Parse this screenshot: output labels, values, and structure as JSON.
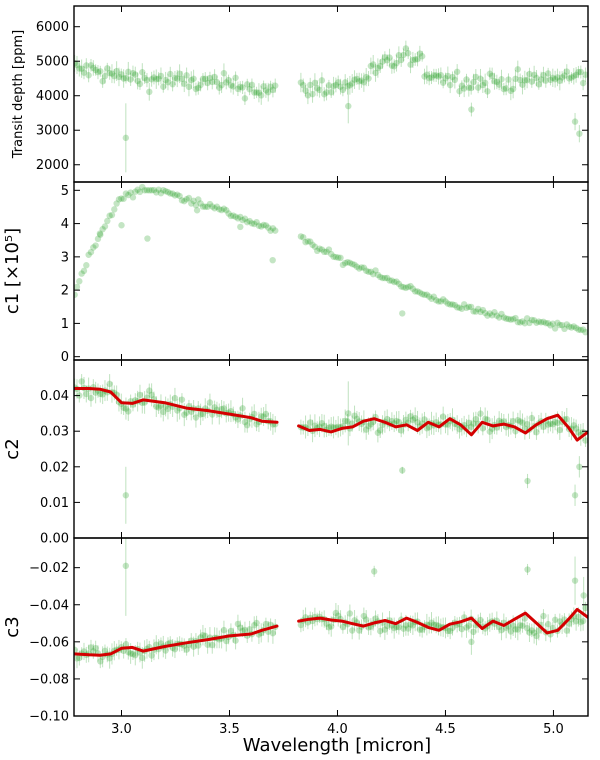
{
  "figure": {
    "xlabel": "Wavelength [micron]",
    "xlim": [
      2.78,
      5.16
    ],
    "xticks": [
      3.0,
      3.5,
      4.0,
      4.5,
      5.0
    ],
    "xticklabels": [
      "3.0",
      "3.5",
      "4.0",
      "4.5",
      "5.0"
    ],
    "gap": [
      3.72,
      3.82
    ],
    "series_color": "#2ca02c",
    "model_color": "#d40000"
  },
  "chart_data": [
    {
      "type": "scatter",
      "panel": "transit-depth",
      "ylabel": "Transit depth [ppm]",
      "ylim": [
        1500,
        6600
      ],
      "yticks": [
        2000,
        3000,
        4000,
        5000,
        6000
      ],
      "yticklabels": [
        "2000",
        "3000",
        "4000",
        "5000",
        "6000"
      ],
      "trend": {
        "x": [
          2.78,
          3.0,
          3.3,
          3.5,
          3.72,
          3.82,
          4.05,
          4.2,
          4.32,
          4.45,
          4.6,
          4.8,
          5.0,
          5.16
        ],
        "y": [
          4800,
          4550,
          4400,
          4320,
          4120,
          4200,
          4300,
          4800,
          5150,
          4600,
          4400,
          4400,
          4500,
          4550
        ]
      },
      "scatter": 200,
      "errorbar": 220,
      "outliers": [
        {
          "x": 3.02,
          "y": 2780,
          "err": 1000
        },
        {
          "x": 4.05,
          "y": 3700,
          "err": 500
        },
        {
          "x": 5.1,
          "y": 3250,
          "err": 250
        },
        {
          "x": 5.12,
          "y": 2900,
          "err": 250
        },
        {
          "x": 4.62,
          "y": 3600,
          "err": 200
        }
      ],
      "model": null
    },
    {
      "type": "scatter",
      "panel": "c1",
      "ylabel": "c1 [×10⁵]",
      "ylim": [
        -0.1,
        5.25
      ],
      "yticks": [
        0,
        1,
        2,
        3,
        4,
        5
      ],
      "yticklabels": [
        "0",
        "1",
        "2",
        "3",
        "4",
        "5"
      ],
      "trend": {
        "x": [
          2.78,
          2.85,
          2.92,
          3.0,
          3.1,
          3.2,
          3.3,
          3.4,
          3.5,
          3.6,
          3.72,
          3.82,
          3.9,
          4.0,
          4.2,
          4.4,
          4.6,
          4.8,
          5.0,
          5.16
        ],
        "y": [
          1.9,
          3.0,
          3.9,
          4.8,
          5.05,
          4.95,
          4.75,
          4.55,
          4.3,
          4.05,
          3.75,
          3.6,
          3.3,
          2.95,
          2.45,
          1.85,
          1.45,
          1.15,
          0.95,
          0.8
        ]
      },
      "scatter": 0.07,
      "errorbar": 0,
      "outliers": [
        {
          "x": 3.12,
          "y": 3.55,
          "err": 0
        },
        {
          "x": 2.9,
          "y": 3.7,
          "err": 0
        },
        {
          "x": 3.0,
          "y": 3.95,
          "err": 0
        },
        {
          "x": 3.35,
          "y": 4.4,
          "err": 0
        },
        {
          "x": 4.3,
          "y": 1.3,
          "err": 0
        },
        {
          "x": 3.7,
          "y": 2.9,
          "err": 0
        },
        {
          "x": 3.55,
          "y": 3.9,
          "err": 0
        }
      ],
      "model": null
    },
    {
      "type": "scatter",
      "panel": "c2",
      "ylabel": "c2",
      "ylim": [
        0.0,
        0.05
      ],
      "yticks": [
        0.0,
        0.01,
        0.02,
        0.03,
        0.04
      ],
      "yticklabels": [
        "0.00",
        "0.01",
        "0.02",
        "0.03",
        "0.04"
      ],
      "trend": {
        "x": [
          2.78,
          2.95,
          3.0,
          3.1,
          3.3,
          3.5,
          3.72,
          3.82,
          4.0,
          4.2,
          4.4,
          4.6,
          4.8,
          5.0,
          5.16
        ],
        "y": [
          0.042,
          0.041,
          0.038,
          0.039,
          0.036,
          0.035,
          0.032,
          0.031,
          0.031,
          0.032,
          0.032,
          0.032,
          0.031,
          0.033,
          0.029
        ]
      },
      "scatter": 0.0017,
      "errorbar": 0.0025,
      "outliers": [
        {
          "x": 3.02,
          "y": 0.012,
          "err": 0.008
        },
        {
          "x": 4.3,
          "y": 0.019,
          "err": 0.001
        },
        {
          "x": 4.88,
          "y": 0.016,
          "err": 0.002
        },
        {
          "x": 5.1,
          "y": 0.012,
          "err": 0.003
        },
        {
          "x": 4.05,
          "y": 0.035,
          "err": 0.009
        },
        {
          "x": 5.12,
          "y": 0.02,
          "err": 0.003
        }
      ],
      "model": {
        "x": [
          2.78,
          2.85,
          2.9,
          2.95,
          3.0,
          3.05,
          3.1,
          3.2,
          3.3,
          3.4,
          3.5,
          3.6,
          3.65,
          3.72,
          3.82,
          3.87,
          3.92,
          3.97,
          4.02,
          4.07,
          4.12,
          4.17,
          4.22,
          4.27,
          4.32,
          4.37,
          4.42,
          4.47,
          4.52,
          4.57,
          4.62,
          4.67,
          4.72,
          4.77,
          4.82,
          4.87,
          4.92,
          4.97,
          5.02,
          5.07,
          5.11,
          5.16
        ],
        "y": [
          0.042,
          0.042,
          0.0418,
          0.041,
          0.038,
          0.0378,
          0.0388,
          0.038,
          0.0365,
          0.0358,
          0.0348,
          0.0338,
          0.0328,
          0.0325,
          0.0315,
          0.0302,
          0.0305,
          0.0298,
          0.0308,
          0.0312,
          0.0328,
          0.0335,
          0.0325,
          0.0312,
          0.0318,
          0.0302,
          0.0325,
          0.0312,
          0.0335,
          0.0318,
          0.029,
          0.0325,
          0.0315,
          0.032,
          0.0312,
          0.0295,
          0.0318,
          0.0335,
          0.0345,
          0.031,
          0.0275,
          0.0298
        ]
      }
    },
    {
      "type": "scatter",
      "panel": "c3",
      "ylabel": "c3",
      "ylim": [
        -0.1,
        -0.004
      ],
      "yticks": [
        -0.1,
        -0.08,
        -0.06,
        -0.04,
        -0.02
      ],
      "yticklabels": [
        "−0.10",
        "−0.08",
        "−0.06",
        "−0.04",
        "−0.02"
      ],
      "trend": {
        "x": [
          2.78,
          2.95,
          3.0,
          3.1,
          3.3,
          3.5,
          3.72,
          3.82,
          4.0,
          4.2,
          4.4,
          4.6,
          4.8,
          5.0,
          5.16
        ],
        "y": [
          -0.067,
          -0.067,
          -0.063,
          -0.065,
          -0.061,
          -0.056,
          -0.052,
          -0.049,
          -0.049,
          -0.051,
          -0.052,
          -0.051,
          -0.05,
          -0.053,
          -0.046
        ]
      },
      "scatter": 0.003,
      "errorbar": 0.0045,
      "outliers": [
        {
          "x": 3.02,
          "y": -0.019,
          "err": 0.027
        },
        {
          "x": 4.17,
          "y": -0.022,
          "err": 0.003
        },
        {
          "x": 4.88,
          "y": -0.021,
          "err": 0.003
        },
        {
          "x": 5.1,
          "y": -0.027,
          "err": 0.013
        },
        {
          "x": 4.62,
          "y": -0.06,
          "err": 0.007
        },
        {
          "x": 5.14,
          "y": -0.035,
          "err": 0.01
        }
      ],
      "model": {
        "x": [
          2.78,
          2.85,
          2.9,
          2.95,
          3.0,
          3.05,
          3.1,
          3.2,
          3.3,
          3.4,
          3.5,
          3.6,
          3.65,
          3.72,
          3.82,
          3.87,
          3.92,
          3.97,
          4.02,
          4.07,
          4.12,
          4.17,
          4.22,
          4.27,
          4.32,
          4.37,
          4.42,
          4.47,
          4.52,
          4.57,
          4.62,
          4.67,
          4.72,
          4.77,
          4.82,
          4.87,
          4.92,
          4.97,
          5.02,
          5.07,
          5.11,
          5.16
        ],
        "y": [
          -0.0665,
          -0.067,
          -0.0672,
          -0.0665,
          -0.0635,
          -0.063,
          -0.065,
          -0.0625,
          -0.0605,
          -0.0588,
          -0.0568,
          -0.0558,
          -0.0538,
          -0.0515,
          -0.0488,
          -0.0478,
          -0.0472,
          -0.0482,
          -0.0488,
          -0.0502,
          -0.0515,
          -0.0498,
          -0.0485,
          -0.0502,
          -0.0472,
          -0.0495,
          -0.0522,
          -0.0538,
          -0.0505,
          -0.0492,
          -0.0472,
          -0.0528,
          -0.0488,
          -0.0512,
          -0.0478,
          -0.0445,
          -0.0498,
          -0.0552,
          -0.0538,
          -0.0478,
          -0.0425,
          -0.0468
        ]
      }
    }
  ]
}
